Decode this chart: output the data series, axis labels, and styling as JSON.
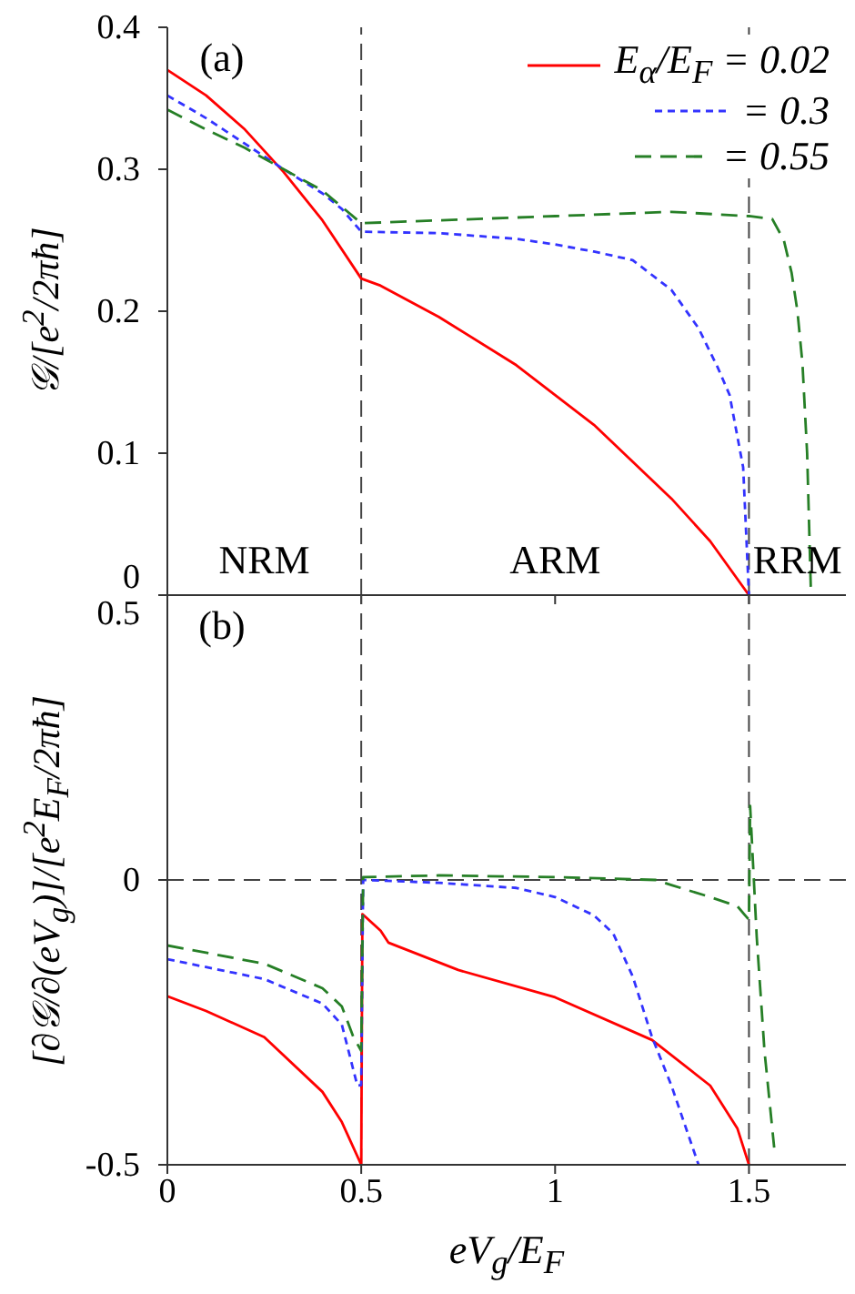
{
  "chart_data": [
    {
      "type": "line",
      "ylabel": "𝒢/[e$^{2}$/2πħ]",
      "xlim": [
        0,
        1.75
      ],
      "xticks": [
        0,
        0.5,
        1,
        1.5
      ],
      "ylim": [
        0,
        0.4
      ],
      "yticks": [
        0,
        0.1,
        0.2,
        0.3,
        0.4
      ],
      "tick_labels": "y",
      "legend": "top right",
      "marker": "none",
      "ref_lines": [
        {
          "axis": "x",
          "value": 0.5,
          "line_style": "dashed",
          "color": "#444444"
        },
        {
          "axis": "x",
          "value": 1.5,
          "line_style": "dashed",
          "color": "#444444"
        }
      ],
      "annotations": [
        "(a)",
        "NRM",
        "ARM",
        "RRM"
      ],
      "series": [
        {
          "name": "E$_{α}$/E$_{F}$ = 0.02",
          "color": "#ff0000",
          "line_style": "solid",
          "x": [
            0,
            0.1,
            0.2,
            0.3,
            0.4,
            0.5,
            0.55,
            0.7,
            0.9,
            1.1,
            1.3,
            1.4,
            1.5
          ],
          "values": [
            0.37,
            0.352,
            0.328,
            0.298,
            0.264,
            0.223,
            0.218,
            0.196,
            0.162,
            0.12,
            0.068,
            0.038,
            0
          ]
        },
        {
          "name": "= 0.3",
          "color": "#3333ff",
          "line_style": "dotted",
          "x": [
            0,
            0.1,
            0.2,
            0.3,
            0.4,
            0.45,
            0.5,
            0.7,
            0.9,
            1.0,
            1.1,
            1.2,
            1.3,
            1.37,
            1.42,
            1.45,
            1.485,
            1.5
          ],
          "values": [
            0.352,
            0.336,
            0.318,
            0.3,
            0.283,
            0.272,
            0.256,
            0.255,
            0.251,
            0.247,
            0.242,
            0.236,
            0.215,
            0.188,
            0.16,
            0.141,
            0.09,
            0
          ]
        },
        {
          "name": "= 0.55",
          "color": "#267f26",
          "line_style": "dashed",
          "x": [
            0,
            0.1,
            0.2,
            0.3,
            0.4,
            0.5,
            0.7,
            1.0,
            1.3,
            1.5,
            1.56,
            1.59,
            1.61,
            1.625,
            1.638,
            1.65,
            1.655,
            1.66
          ],
          "values": [
            0.342,
            0.328,
            0.315,
            0.3,
            0.285,
            0.262,
            0.264,
            0.267,
            0.27,
            0.267,
            0.265,
            0.25,
            0.227,
            0.2,
            0.163,
            0.1,
            0.05,
            0
          ]
        }
      ]
    },
    {
      "type": "line",
      "xlabel": "eV$_{g}$/E$_{F}$",
      "ylabel": "[∂𝒢/∂(eV$_{g}$)]/[e$^{2}$E$_{F}$/2πħ]",
      "xlim": [
        0,
        1.75
      ],
      "xticks": [
        0,
        0.5,
        1,
        1.5
      ],
      "ylim": [
        -0.5,
        0.5
      ],
      "yticks": [
        -0.5,
        0,
        0.5
      ],
      "marker": "none",
      "ref_lines": [
        {
          "axis": "x",
          "value": 0.5,
          "line_style": "dashed",
          "color": "#444444"
        },
        {
          "axis": "x",
          "value": 1.5,
          "line_style": "dashed",
          "color": "#444444"
        },
        {
          "axis": "y",
          "value": 0,
          "line_style": "dashed",
          "color": "#444444"
        }
      ],
      "annotations": [
        "(b)"
      ],
      "series": [
        {
          "color": "#ff0000",
          "line_style": "solid",
          "x": [
            0,
            0.1,
            0.25,
            0.4,
            0.45,
            0.5,
            0.503,
            0.55,
            0.57,
            0.75,
            1.0,
            1.25,
            1.4,
            1.47,
            1.5
          ],
          "values": [
            -0.204,
            -0.23,
            -0.276,
            -0.372,
            -0.425,
            -0.5,
            -0.06,
            -0.089,
            -0.11,
            -0.158,
            -0.206,
            -0.281,
            -0.361,
            -0.436,
            -0.5
          ]
        },
        {
          "color": "#3333ff",
          "line_style": "dotted",
          "x": [
            0,
            0.25,
            0.4,
            0.45,
            0.49,
            0.5,
            0.505,
            0.7,
            0.9,
            1.0,
            1.1,
            1.15,
            1.2,
            1.25,
            1.3,
            1.37
          ],
          "values": [
            -0.139,
            -0.174,
            -0.217,
            -0.254,
            -0.361,
            -0.36,
            0,
            -0.005,
            -0.014,
            -0.03,
            -0.062,
            -0.094,
            -0.169,
            -0.276,
            -0.361,
            -0.5
          ]
        },
        {
          "color": "#267f26",
          "line_style": "dashed",
          "x": [
            0,
            0.25,
            0.4,
            0.45,
            0.48,
            0.5,
            0.505,
            0.7,
            1.0,
            1.26,
            1.3,
            1.4,
            1.47,
            1.49,
            1.5,
            1.503,
            1.52,
            1.54,
            1.565
          ],
          "values": [
            -0.115,
            -0.147,
            -0.19,
            -0.222,
            -0.276,
            -0.3,
            0.005,
            0.008,
            0.005,
            0,
            -0.009,
            -0.03,
            -0.046,
            -0.062,
            -0.07,
            0.13,
            -0.1,
            -0.3,
            -0.47
          ]
        }
      ]
    }
  ]
}
